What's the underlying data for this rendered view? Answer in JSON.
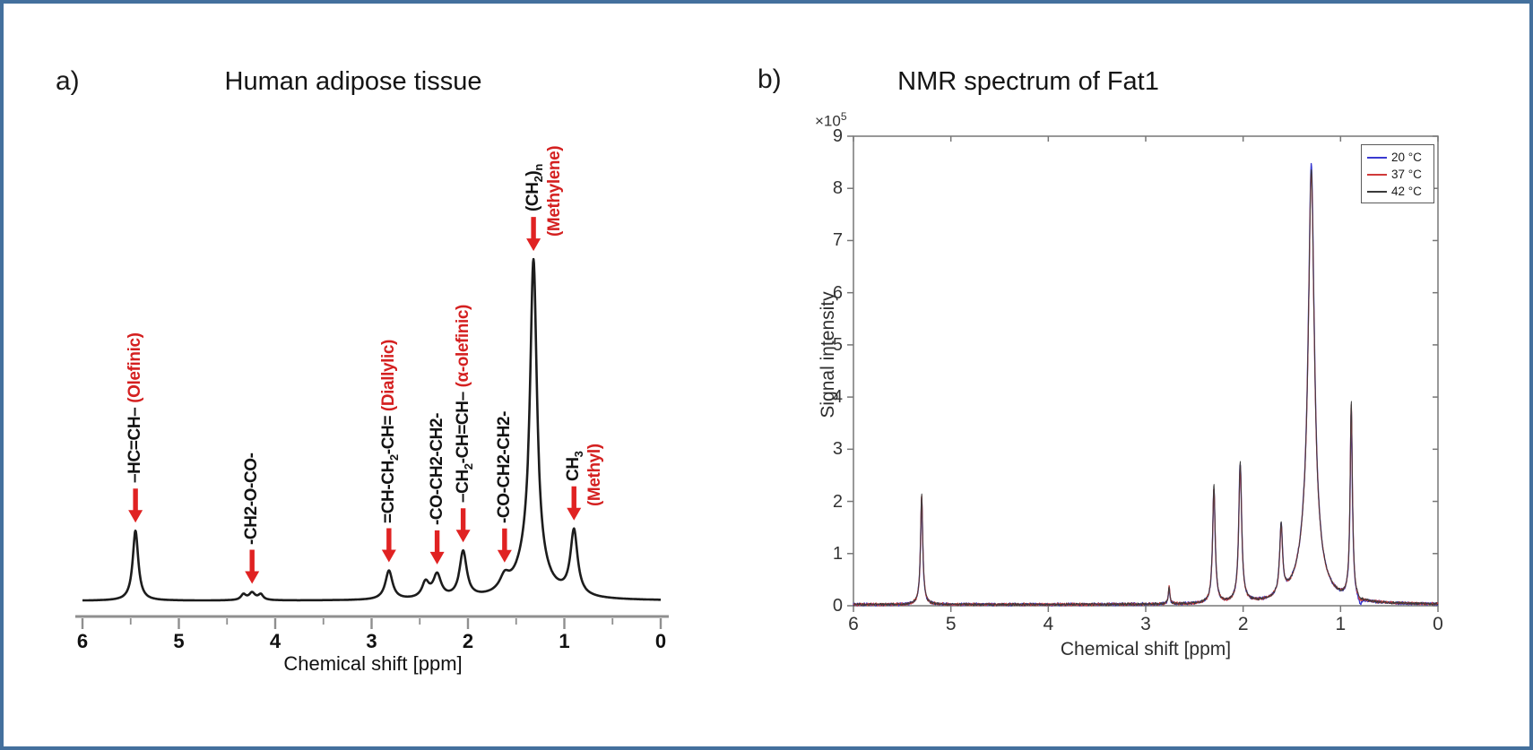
{
  "figure": {
    "border_color": "#44709d",
    "background": "#ffffff"
  },
  "chart_data": [
    {
      "id": "a",
      "type": "line",
      "panel_label": "a)",
      "title": "Human adipose tissue",
      "xlabel": "Chemical shift [ppm]",
      "xlim": [
        6,
        0
      ],
      "x_ticks": [
        "6",
        "5",
        "4",
        "3",
        "2",
        "1",
        "0"
      ],
      "x_minor_step": 0.5,
      "grid": false,
      "line_color": "#1c1c1c",
      "axis_color": "#8f8f8f",
      "arrow_color": "#e02222",
      "annotation_color": "#d42020",
      "peaks": [
        {
          "ppm": 5.45,
          "rel_height": 0.205,
          "width": 0.035,
          "formula": "–HC=CH–",
          "annotation": "(Olefinic)",
          "annotation_inline": true
        },
        {
          "ppm": 4.24,
          "rel_height": 0.012,
          "width": 0.05,
          "formula": "-CH2-O-CO-",
          "annotation": "",
          "annotation_inline": true
        },
        {
          "ppm": 2.82,
          "rel_height": 0.085,
          "width": 0.045,
          "formula": "=CH-CH_2-CH=",
          "annotation": "(Diallylic)",
          "annotation_inline": true
        },
        {
          "ppm": 2.32,
          "rel_height": 0.068,
          "width": 0.05,
          "formula": "-CO-CH2-CH2-",
          "annotation": "",
          "annotation_inline": true
        },
        {
          "ppm": 2.05,
          "rel_height": 0.135,
          "width": 0.045,
          "formula": "–CH_2-CH=CH–",
          "annotation": "(α-olefinic)",
          "annotation_inline": true
        },
        {
          "ppm": 1.62,
          "rel_height": 0.04,
          "width": 0.06,
          "formula": "-CO-CH2-CH2-",
          "annotation": "",
          "annotation_inline": true
        },
        {
          "ppm": 1.32,
          "rel_height": 0.89,
          "width": 0.042,
          "formula": "(CH_2)_n",
          "annotation": "(Methylene)",
          "annotation_inline": false
        },
        {
          "ppm": 0.9,
          "rel_height": 0.19,
          "width": 0.045,
          "formula": "CH_3",
          "annotation": "(Methyl)",
          "annotation_inline": false
        }
      ],
      "extra_components": [
        {
          "ppm": 1.35,
          "rel_height": 0.11,
          "width": 0.16
        },
        {
          "ppm": 2.44,
          "rel_height": 0.045,
          "width": 0.045
        },
        {
          "ppm": 4.33,
          "rel_height": 0.016,
          "width": 0.03
        },
        {
          "ppm": 4.15,
          "rel_height": 0.016,
          "width": 0.03
        },
        {
          "ppm": 4.24,
          "rel_height": 0.01,
          "width": 0.03
        }
      ]
    },
    {
      "id": "b",
      "type": "line",
      "panel_label": "b)",
      "title": "NMR spectrum of Fat1",
      "xlabel": "Chemical shift [ppm]",
      "ylabel": "Signal intensity",
      "y_scale_base": "×10",
      "y_scale_exp": "5",
      "xlim": [
        6,
        0
      ],
      "ylim": [
        0,
        9
      ],
      "x_ticks": [
        "6",
        "5",
        "4",
        "3",
        "2",
        "1",
        "0"
      ],
      "y_ticks": [
        "0",
        "1",
        "2",
        "3",
        "4",
        "5",
        "6",
        "7",
        "8",
        "9"
      ],
      "grid": false,
      "box_color": "#777777",
      "tick_label_color": "#333333",
      "legend_position": "top-right",
      "noise_amplitude": 0.03,
      "peak_ppms": [
        5.3,
        2.76,
        2.3,
        2.03,
        1.61,
        1.315,
        1.3,
        0.89,
        0.8
      ],
      "peak_widths": [
        0.014,
        0.01,
        0.016,
        0.018,
        0.018,
        0.11,
        0.036,
        0.014,
        0.025
      ],
      "series": [
        {
          "name": "20 °C",
          "color": "#3a3ad0",
          "peak_heights": [
            2.05,
            0.3,
            2.2,
            2.65,
            1.32,
            1.15,
            7.3,
            3.6,
            -0.15
          ]
        },
        {
          "name": "37 °C",
          "color": "#d03a3a",
          "peak_heights": [
            2.1,
            0.33,
            2.22,
            2.62,
            1.3,
            1.15,
            7.15,
            3.75,
            -0.08
          ]
        },
        {
          "name": "42 °C",
          "color": "#3a3a3a",
          "peak_heights": [
            2.13,
            0.32,
            2.28,
            2.68,
            1.35,
            1.15,
            7.2,
            3.8,
            -0.05
          ]
        }
      ]
    }
  ]
}
